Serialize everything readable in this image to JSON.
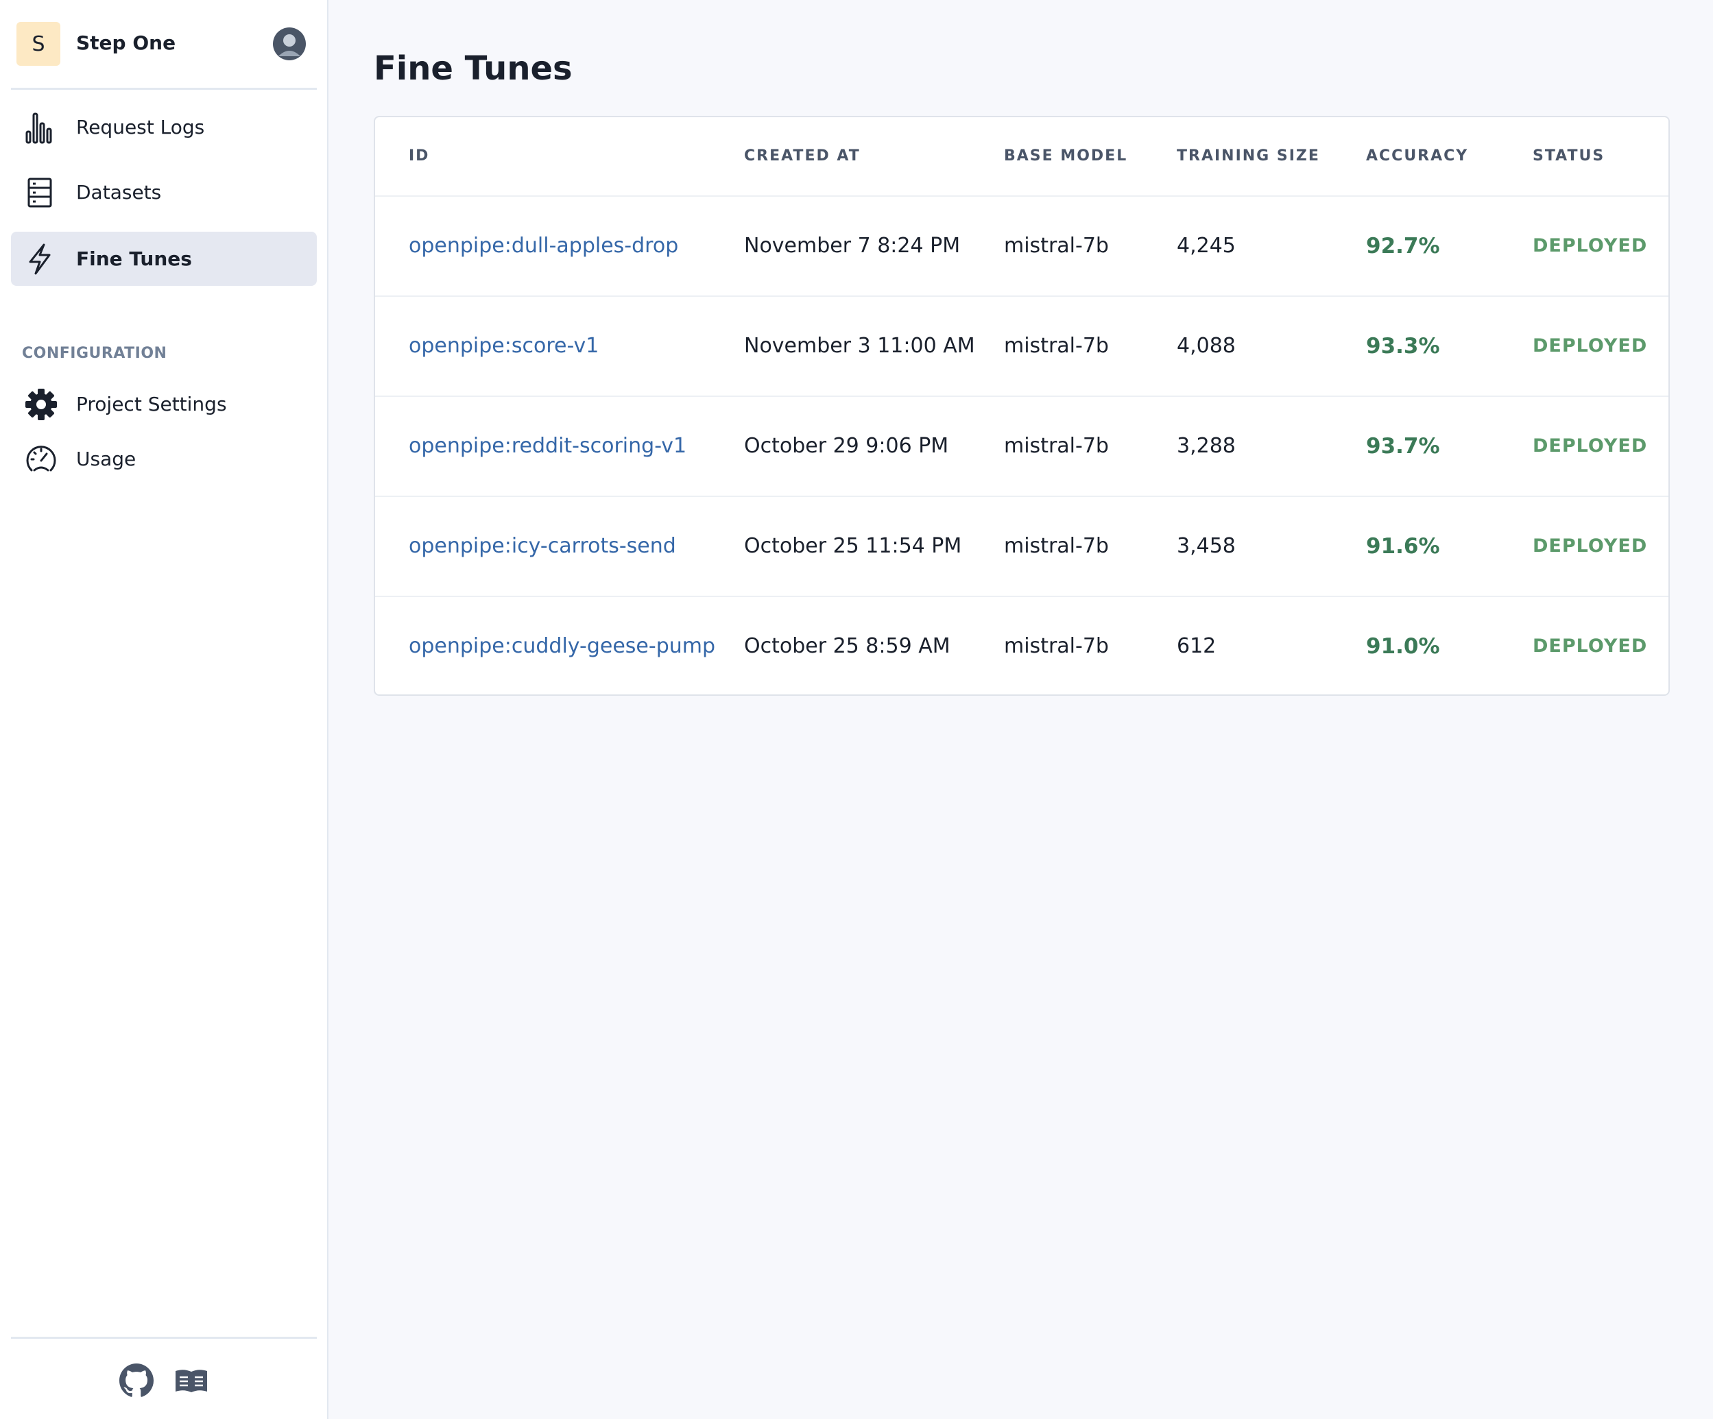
{
  "sidebar": {
    "project_initial": "S",
    "project_name": "Step One",
    "nav": [
      "Request Logs",
      "Datasets",
      "Fine Tunes"
    ],
    "section_label": "CONFIGURATION",
    "config_nav": [
      "Project Settings",
      "Usage"
    ]
  },
  "main": {
    "title": "Fine Tunes",
    "table": {
      "headers": [
        "ID",
        "CREATED AT",
        "BASE MODEL",
        "TRAINING SIZE",
        "ACCURACY",
        "STATUS"
      ],
      "rows": [
        [
          "openpipe:dull-apples-drop",
          "November 7 8:24 PM",
          "mistral-7b",
          "4,245",
          "92.7%",
          "DEPLOYED"
        ],
        [
          "openpipe:score-v1",
          "November 3 11:00 AM",
          "mistral-7b",
          "4,088",
          "93.3%",
          "DEPLOYED"
        ],
        [
          "openpipe:reddit-scoring-v1",
          "October 29 9:06 PM",
          "mistral-7b",
          "3,288",
          "93.7%",
          "DEPLOYED"
        ],
        [
          "openpipe:icy-carrots-send",
          "October 25 11:54 PM",
          "mistral-7b",
          "3,458",
          "91.6%",
          "DEPLOYED"
        ],
        [
          "openpipe:cuddly-geese-pump",
          "October 25 8:59 AM",
          "mistral-7b",
          "612",
          "91.0%",
          "DEPLOYED"
        ]
      ]
    }
  }
}
